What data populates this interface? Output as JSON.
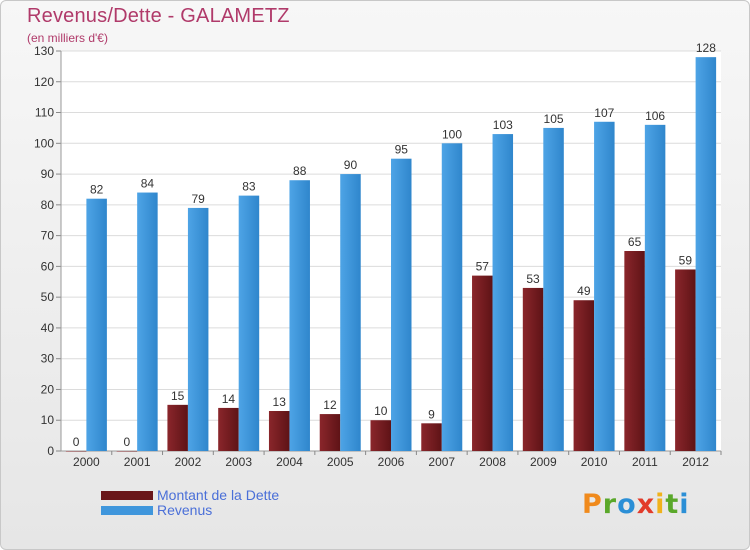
{
  "header": {
    "title": "Revenus/Dette - GALAMETZ",
    "subtitle": "(en milliers d'€)"
  },
  "colors": {
    "dette": "#7a1e22",
    "revenus": "#3f96dc",
    "title": "#b03a6a",
    "legend_text": "#4a6fd8"
  },
  "legend": {
    "dette_label": "Montant de la Dette",
    "revenus_label": "Revenus",
    "position": "bottom-left"
  },
  "logo": {
    "text": "Proxiti"
  },
  "chart_data": {
    "type": "bar",
    "title": "Revenus/Dette - GALAMETZ",
    "subtitle": "(en milliers d'€)",
    "xlabel": "",
    "ylabel": "",
    "ylim": [
      0,
      130
    ],
    "yticks": [
      0,
      10,
      20,
      30,
      40,
      50,
      60,
      70,
      80,
      90,
      100,
      110,
      120,
      130
    ],
    "grid": true,
    "categories": [
      "2000",
      "2001",
      "2002",
      "2003",
      "2004",
      "2005",
      "2006",
      "2007",
      "2008",
      "2009",
      "2010",
      "2011",
      "2012"
    ],
    "series": [
      {
        "name": "Montant de la Dette",
        "values": [
          0,
          0,
          15,
          14,
          13,
          12,
          10,
          9,
          57,
          53,
          49,
          65,
          59
        ]
      },
      {
        "name": "Revenus",
        "values": [
          82,
          84,
          79,
          83,
          88,
          90,
          95,
          100,
          103,
          105,
          107,
          106,
          128
        ]
      }
    ]
  }
}
